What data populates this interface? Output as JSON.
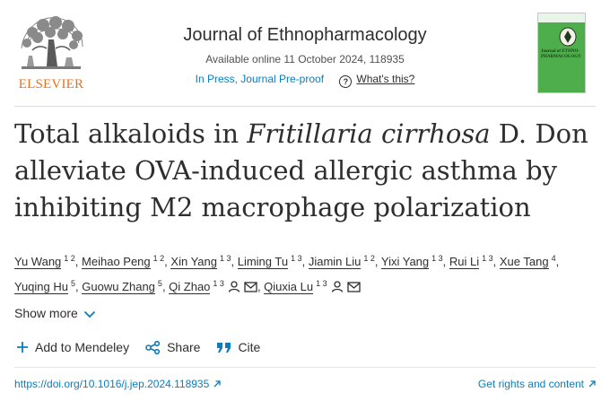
{
  "header": {
    "publisher": "ELSEVIER",
    "journal_title": "Journal of Ethnopharmacology",
    "availability": "Available online 11 October 2024, 118935",
    "status": "In Press, Journal Pre-proof",
    "whats_this": "What's this?",
    "cover_text": "Journal of ETHNO- PHARMACOLOGY"
  },
  "article": {
    "title_part1": "Total alkaloids in ",
    "title_italic": "Fritillaria cirrhosa",
    "title_part2": " D. Don alleviate OVA-induced allergic asthma by inhibiting M2 macrophage polarization"
  },
  "authors": [
    {
      "name": "Yu Wang",
      "aff": "1 2"
    },
    {
      "name": "Meihao Peng",
      "aff": "1 2"
    },
    {
      "name": "Xin Yang",
      "aff": "1 3"
    },
    {
      "name": "Liming Tu",
      "aff": "1 3"
    },
    {
      "name": "Jiamin Liu",
      "aff": "1 2"
    },
    {
      "name": "Yixi Yang",
      "aff": "1 3"
    },
    {
      "name": "Rui Li",
      "aff": "1 3"
    },
    {
      "name": "Xue Tang",
      "aff": "4"
    },
    {
      "name": "Yuqing Hu",
      "aff": "5"
    },
    {
      "name": "Guowu Zhang",
      "aff": "5"
    },
    {
      "name": "Qi Zhao",
      "aff": "1 3"
    },
    {
      "name": "Qiuxia Lu",
      "aff": "1 3"
    }
  ],
  "controls": {
    "show_more": "Show more",
    "add_mendeley": "Add to Mendeley",
    "share": "Share",
    "cite": "Cite"
  },
  "links": {
    "doi": "https://doi.org/10.1016/j.jep.2024.118935",
    "rights": "Get rights and content"
  },
  "colors": {
    "link": "#0c7dbb",
    "publisher_orange": "#e9711c",
    "cover_green": "#4fae4c"
  },
  "icons": {
    "person": "person-icon",
    "envelope": "envelope-icon",
    "chevron": "chevron-down-icon",
    "plus": "plus-icon",
    "share": "share-icon",
    "cite": "quote-icon",
    "external": "external-arrow-icon"
  }
}
